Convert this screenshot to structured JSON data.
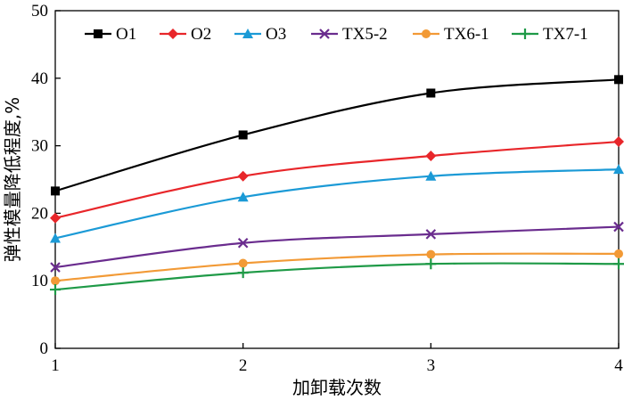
{
  "chart_data": {
    "type": "line",
    "title": "",
    "xlabel": "加卸载次数",
    "ylabel": "弹性模量降低程度,%",
    "x": [
      1,
      2,
      3,
      4
    ],
    "x_tick_labels": [
      "1",
      "2",
      "3",
      "4"
    ],
    "xlim": [
      1,
      4
    ],
    "ylim": [
      0,
      50
    ],
    "y_ticks": [
      0,
      10,
      20,
      30,
      40,
      50
    ],
    "y_tick_labels": [
      "0",
      "10",
      "20",
      "30",
      "40",
      "50"
    ],
    "grid": false,
    "legend_position": "top",
    "series": [
      {
        "name": "O1",
        "color": "#000000",
        "marker": "square",
        "values": [
          23.3,
          31.6,
          37.8,
          39.8
        ]
      },
      {
        "name": "O2",
        "color": "#e8262a",
        "marker": "diamond",
        "values": [
          19.3,
          25.5,
          28.5,
          30.6
        ]
      },
      {
        "name": "O3",
        "color": "#1b9ad6",
        "marker": "triangle",
        "values": [
          16.3,
          22.4,
          25.5,
          26.5
        ]
      },
      {
        "name": "TX5-2",
        "color": "#6a2c8e",
        "marker": "x",
        "values": [
          12.0,
          15.6,
          16.9,
          18.0
        ]
      },
      {
        "name": "TX6-1",
        "color": "#f29a36",
        "marker": "circle",
        "values": [
          10.0,
          12.6,
          13.9,
          14.0
        ]
      },
      {
        "name": "TX7-1",
        "color": "#1f9a47",
        "marker": "plus",
        "values": [
          8.7,
          11.2,
          12.5,
          12.5
        ]
      }
    ]
  }
}
